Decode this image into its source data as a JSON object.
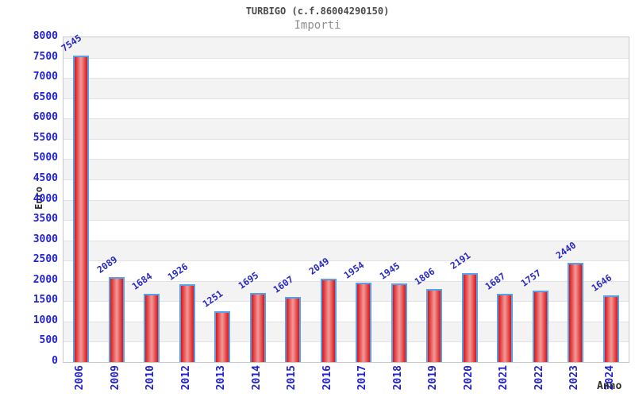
{
  "header": {
    "title": "TURBIGO (c.f.86004290150)",
    "subtitle": "Importi"
  },
  "chart_data": {
    "type": "bar",
    "title": "TURBIGO (c.f.86004290150)",
    "subtitle": "Importi",
    "xlabel": "Anno",
    "ylabel": "Euro",
    "categories": [
      "2006",
      "2009",
      "2010",
      "2012",
      "2013",
      "2014",
      "2015",
      "2016",
      "2017",
      "2018",
      "2019",
      "2020",
      "2021",
      "2022",
      "2023",
      "2024"
    ],
    "values": [
      7545,
      2089,
      1684,
      1926,
      1251,
      1695,
      1607,
      2049,
      1954,
      1945,
      1806,
      2191,
      1687,
      1757,
      2440,
      1646
    ],
    "ylim": [
      0,
      8000
    ],
    "ytick_step": 500,
    "grid": true,
    "legend": "none",
    "band_fill": "alternating horizontal 500-unit stripes, gray at top",
    "colors": {
      "bar_edge": "#dc1414",
      "bar_center": "#f29a9a",
      "bar_border": "#58a1ea",
      "axis_text": "#2323cd",
      "value_text": "#2a2ac0",
      "band_gray": "#f3f3f3",
      "gridline": "#e2e2e2",
      "plot_border": "#c9c9c9",
      "title_color": "#4a4a4a",
      "subtitle_color": "#8f8f8f",
      "axis_title_color": "#2b2b2b"
    }
  }
}
